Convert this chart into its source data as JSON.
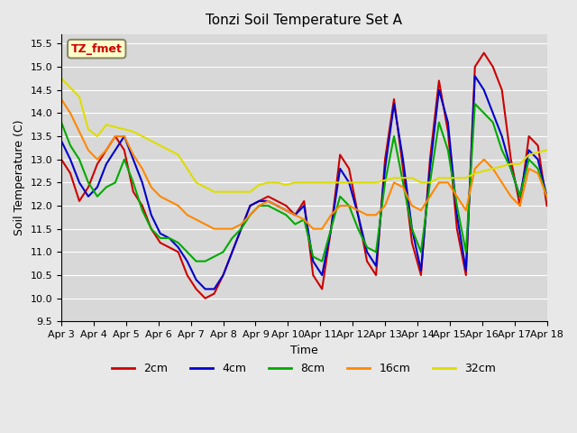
{
  "title": "Tonzi Soil Temperature Set A",
  "xlabel": "Time",
  "ylabel": "Soil Temperature (C)",
  "ylim": [
    9.5,
    15.7
  ],
  "background_color": "#e8e8e8",
  "plot_bg_color": "#d8d8d8",
  "legend_label": "TZ_fmet",
  "series": {
    "2cm": {
      "color": "#cc0000",
      "lw": 1.5
    },
    "4cm": {
      "color": "#0000cc",
      "lw": 1.5
    },
    "8cm": {
      "color": "#00aa00",
      "lw": 1.5
    },
    "16cm": {
      "color": "#ff8800",
      "lw": 1.5
    },
    "32cm": {
      "color": "#dddd00",
      "lw": 1.5
    }
  },
  "x_ticks": [
    "Apr 3",
    "Apr 4",
    "Apr 5",
    "Apr 6",
    "Apr 7",
    "Apr 8",
    "Apr 9",
    "Apr 10",
    "Apr 11",
    "Apr 12",
    "Apr 13",
    "Apr 14",
    "Apr 15",
    "Apr 16",
    "Apr 17",
    "Apr 18"
  ],
  "data": {
    "2cm": [
      13.0,
      12.7,
      12.1,
      12.4,
      12.9,
      13.2,
      13.5,
      13.2,
      12.3,
      12.0,
      11.5,
      11.2,
      11.1,
      11.0,
      10.5,
      10.2,
      10.0,
      10.1,
      10.5,
      11.0,
      11.5,
      12.0,
      12.1,
      12.2,
      12.1,
      12.0,
      11.8,
      12.1,
      10.5,
      10.2,
      11.5,
      13.1,
      12.8,
      11.8,
      10.8,
      10.5,
      13.0,
      14.3,
      12.8,
      11.2,
      10.5,
      13.0,
      14.7,
      13.6,
      11.5,
      10.5,
      15.0,
      15.3,
      15.0,
      14.5,
      13.0,
      12.0,
      13.5,
      13.3,
      12.0
    ],
    "4cm": [
      13.4,
      13.0,
      12.5,
      12.2,
      12.4,
      12.9,
      13.2,
      13.5,
      13.0,
      12.5,
      11.8,
      11.4,
      11.3,
      11.1,
      10.8,
      10.4,
      10.2,
      10.2,
      10.5,
      11.0,
      11.5,
      12.0,
      12.1,
      12.1,
      12.0,
      11.9,
      11.8,
      12.0,
      10.8,
      10.5,
      11.5,
      12.8,
      12.5,
      11.8,
      11.0,
      10.7,
      12.8,
      14.2,
      13.0,
      11.5,
      10.6,
      12.8,
      14.5,
      13.8,
      11.8,
      10.6,
      14.8,
      14.5,
      14.0,
      13.5,
      12.8,
      12.2,
      13.2,
      13.0,
      12.2
    ],
    "8cm": [
      13.8,
      13.3,
      13.0,
      12.5,
      12.2,
      12.4,
      12.5,
      13.0,
      12.5,
      11.9,
      11.5,
      11.3,
      11.3,
      11.2,
      11.0,
      10.8,
      10.8,
      10.9,
      11.0,
      11.3,
      11.5,
      11.8,
      12.0,
      12.0,
      11.9,
      11.8,
      11.6,
      11.7,
      10.9,
      10.8,
      11.5,
      12.2,
      12.0,
      11.5,
      11.1,
      11.0,
      12.5,
      13.5,
      12.5,
      11.5,
      11.0,
      12.5,
      13.8,
      13.2,
      12.0,
      11.0,
      14.2,
      14.0,
      13.8,
      13.2,
      12.8,
      12.2,
      13.0,
      12.8,
      12.2
    ],
    "16cm": [
      14.3,
      14.0,
      13.6,
      13.2,
      13.0,
      13.2,
      13.5,
      13.5,
      13.1,
      12.8,
      12.4,
      12.2,
      12.1,
      12.0,
      11.8,
      11.7,
      11.6,
      11.5,
      11.5,
      11.5,
      11.6,
      11.8,
      12.0,
      12.1,
      12.0,
      11.9,
      11.8,
      11.7,
      11.5,
      11.5,
      11.8,
      12.0,
      12.0,
      11.9,
      11.8,
      11.8,
      12.0,
      12.5,
      12.4,
      12.0,
      11.9,
      12.2,
      12.5,
      12.5,
      12.2,
      11.9,
      12.8,
      13.0,
      12.8,
      12.5,
      12.2,
      12.0,
      12.8,
      12.7,
      12.2
    ],
    "32cm": [
      14.75,
      14.55,
      14.35,
      13.65,
      13.5,
      13.75,
      13.7,
      13.65,
      13.6,
      13.5,
      13.4,
      13.3,
      13.2,
      13.1,
      12.8,
      12.5,
      12.4,
      12.3,
      12.3,
      12.3,
      12.3,
      12.3,
      12.45,
      12.5,
      12.5,
      12.45,
      12.5,
      12.5,
      12.5,
      12.5,
      12.5,
      12.5,
      12.5,
      12.5,
      12.5,
      12.5,
      12.55,
      12.6,
      12.6,
      12.6,
      12.5,
      12.5,
      12.6,
      12.6,
      12.6,
      12.6,
      12.7,
      12.75,
      12.8,
      12.85,
      12.9,
      12.9,
      13.1,
      13.15,
      13.2
    ]
  }
}
